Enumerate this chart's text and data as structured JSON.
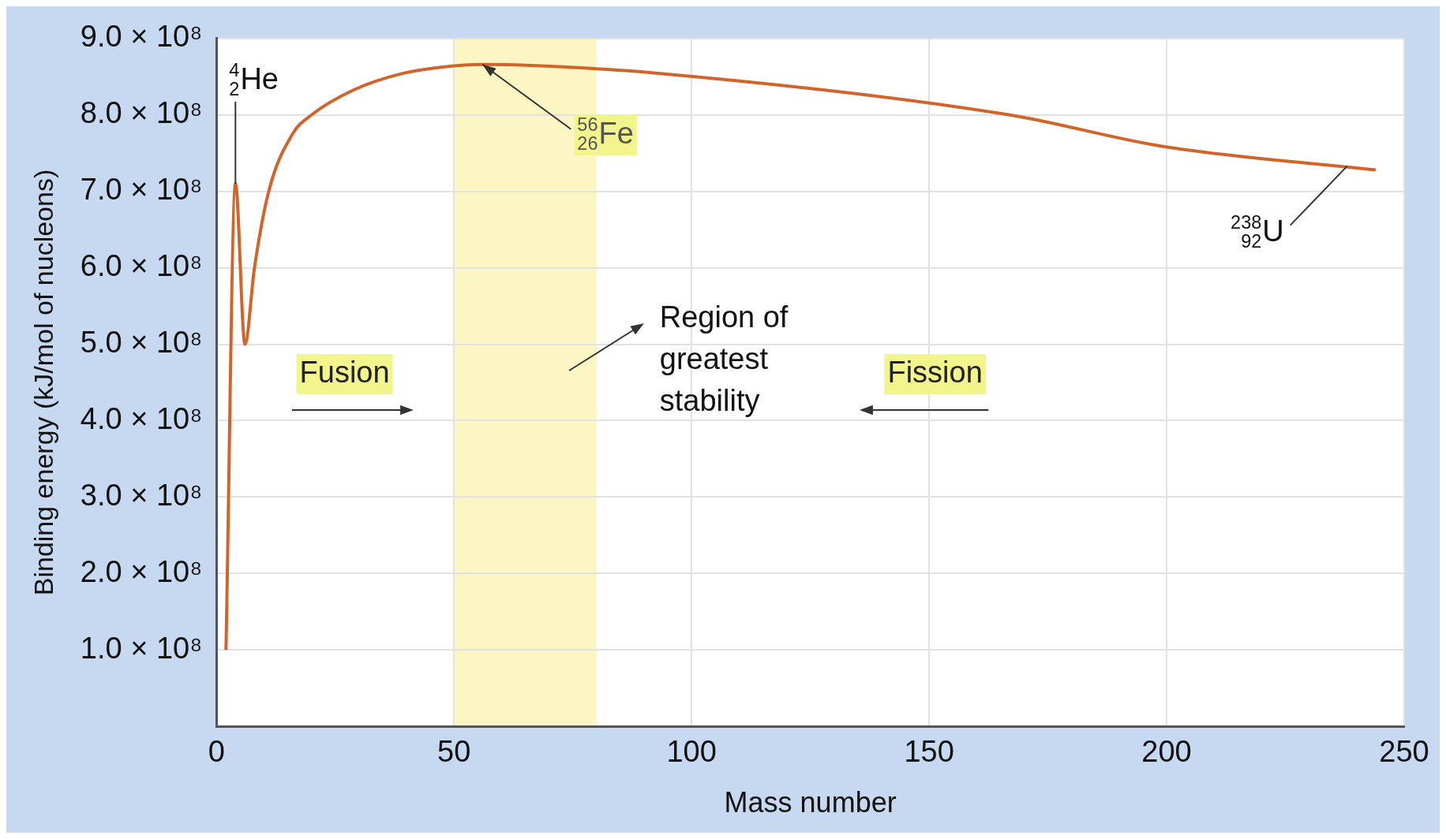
{
  "chart_data": {
    "type": "line",
    "xlabel": "Mass number",
    "ylabel": "Binding energy (kJ/mol of nucleons)",
    "x": [
      2,
      4,
      6,
      8,
      11,
      16,
      20,
      29,
      39,
      48,
      56,
      65,
      92,
      167,
      199,
      244
    ],
    "series": [
      {
        "color": "#d2642a",
        "values": [
          100000000,
          710000000,
          500000000,
          600000000,
          700000000,
          775000000,
          800000000,
          833000000,
          854000000,
          863000000,
          866000000,
          865000000,
          855000000,
          800000000,
          759000000,
          728000000
        ]
      }
    ],
    "xlim": [
      0,
      250
    ],
    "xticks": [
      0,
      50,
      100,
      150,
      200,
      250
    ],
    "ylim": [
      0,
      900000000
    ],
    "yticks": [
      {
        "value": 100000000,
        "label": "1.0 × 10⁸"
      },
      {
        "value": 200000000,
        "label": "2.0 × 10⁸"
      },
      {
        "value": 300000000,
        "label": "3.0 × 10⁸"
      },
      {
        "value": 400000000,
        "label": "4.0 × 10⁸"
      },
      {
        "value": 500000000,
        "label": "5.0 × 10⁸"
      },
      {
        "value": 600000000,
        "label": "6.0 × 10⁸"
      },
      {
        "value": 700000000,
        "label": "7.0 × 10⁸"
      },
      {
        "value": 800000000,
        "label": "8.0 × 10⁸"
      },
      {
        "value": 900000000,
        "label": "9.0 × 10⁸"
      }
    ],
    "grid": true,
    "bands": [
      {
        "axis": "x",
        "from": 50,
        "to": 80,
        "label": "Region of greatest stability",
        "color": "#fbf6c4"
      }
    ],
    "annotations": [
      {
        "text": "$^{4}$$_{2}$He",
        "x": 4,
        "y": 710000000
      },
      {
        "text": "$^{56}$$_{26}$Fe",
        "x": 56,
        "y": 866000000
      },
      {
        "text": "$^{238}$$_{92}$U",
        "x": 238,
        "y": 733000000
      },
      "Fusion",
      "Fission"
    ]
  }
}
